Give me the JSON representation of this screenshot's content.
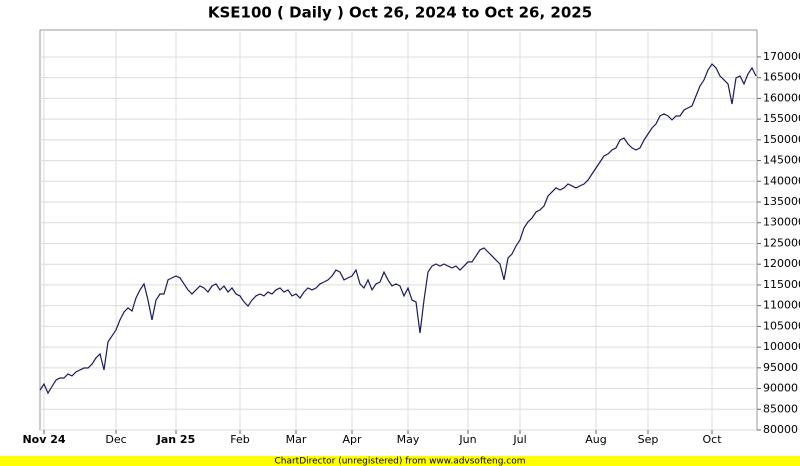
{
  "chart_data": {
    "type": "line",
    "title": "KSE100 ( Daily ) Oct 26, 2024 to Oct 26, 2025",
    "footer": "ChartDirector (unregistered) from www.advsofteng.com",
    "series": [
      {
        "name": "KSE100",
        "color": "#1a1a5e",
        "values": [
          89650,
          91100,
          88900,
          90500,
          92050,
          92550,
          92550,
          93500,
          93050,
          94000,
          94500,
          94950,
          94950,
          95900,
          97400,
          98350,
          94500,
          101250,
          102700,
          104150,
          106550,
          108450,
          109450,
          108700,
          111850,
          113800,
          115250,
          111350,
          106550,
          111350,
          112800,
          112800,
          116200,
          116700,
          117150,
          116700,
          115250,
          113800,
          112800,
          113800,
          114750,
          114250,
          113300,
          114750,
          115250,
          113800,
          114750,
          113300,
          114250,
          112800,
          112350,
          110900,
          109900,
          111350,
          112350,
          112800,
          112350,
          113300,
          112800,
          113800,
          114250,
          113300,
          113800,
          112350,
          112800,
          111850,
          113300,
          114250,
          113800,
          114250,
          115250,
          115700,
          116200,
          117150,
          118600,
          118100,
          116200,
          116700,
          117150,
          118600,
          115250,
          114250,
          116200,
          113800,
          115250,
          115700,
          118100,
          116200,
          114750,
          115250,
          114750,
          112350,
          114250,
          111350,
          110900,
          103400,
          111350,
          118100,
          119550,
          120050,
          119550,
          120050,
          119550,
          119100,
          119550,
          118600,
          119550,
          120550,
          120550,
          122000,
          123450,
          123900,
          122950,
          122000,
          121000,
          120050,
          116200,
          121500,
          122450,
          124400,
          125850,
          128750,
          130200,
          131150,
          132600,
          133100,
          134050,
          136450,
          137450,
          138400,
          137900,
          138400,
          139350,
          138900,
          138400,
          138900,
          139350,
          140300,
          141750,
          143200,
          144650,
          146100,
          146600,
          147550,
          148050,
          149950,
          150450,
          149000,
          148050,
          147550,
          148050,
          149950,
          151400,
          152850,
          153850,
          155750,
          156250,
          155750,
          154800,
          155750,
          155750,
          157200,
          157700,
          158200,
          160600,
          163000,
          164450,
          166850,
          168300,
          167350,
          165400,
          164450,
          163500,
          158650,
          164950,
          165400,
          163500,
          165900,
          167350,
          165400
        ]
      }
    ],
    "xlim": [
      0,
      179
    ],
    "xticks": [
      {
        "value": 1,
        "label": "Nov 24"
      },
      {
        "value": 19,
        "label": "Dec"
      },
      {
        "value": 34,
        "label": "Jan 25"
      },
      {
        "value": 50,
        "label": "Feb"
      },
      {
        "value": 64,
        "label": "Mar"
      },
      {
        "value": 78,
        "label": "Apr"
      },
      {
        "value": 92,
        "label": "May"
      },
      {
        "value": 107,
        "label": "Jun"
      },
      {
        "value": 120,
        "label": "Jul"
      },
      {
        "value": 139,
        "label": "Aug"
      },
      {
        "value": 152,
        "label": "Sep"
      },
      {
        "value": 168,
        "label": "Oct"
      }
    ],
    "ylim": [
      80000,
      176500
    ],
    "yticks": [
      80000,
      85000,
      90000,
      95000,
      100000,
      105000,
      110000,
      115000,
      120000,
      125000,
      130000,
      135000,
      140000,
      145000,
      150000,
      155000,
      160000,
      165000,
      170000
    ],
    "grid": true
  }
}
